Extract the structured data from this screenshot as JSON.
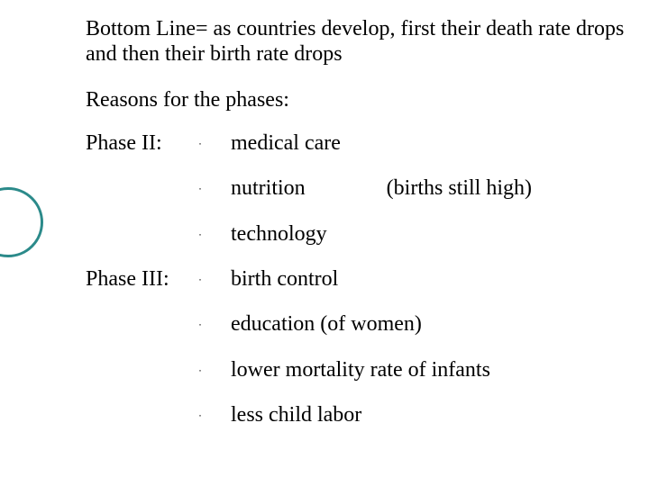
{
  "colors": {
    "background": "#ffffff",
    "text": "#000000",
    "circle_border": "#2b8a8a"
  },
  "typography": {
    "font_family": "Times New Roman",
    "base_fontsize_pt": 18
  },
  "bottom_line": "Bottom Line= as countries develop, first their death rate drops and then their birth rate drops",
  "reasons_heading": "Reasons for the phases:",
  "bullet_char": "·",
  "phase2": {
    "label": "Phase II:",
    "items": [
      {
        "text": "medical care",
        "note": ""
      },
      {
        "text": "nutrition",
        "note": "(births still high)"
      },
      {
        "text": "technology",
        "note": ""
      }
    ]
  },
  "phase3": {
    "label": "Phase III:",
    "items": [
      {
        "text": "birth control",
        "note": ""
      },
      {
        "text": "education (of women)",
        "note": ""
      },
      {
        "text": "lower mortality rate of infants",
        "note": ""
      },
      {
        "text": "less child labor",
        "note": ""
      }
    ]
  }
}
